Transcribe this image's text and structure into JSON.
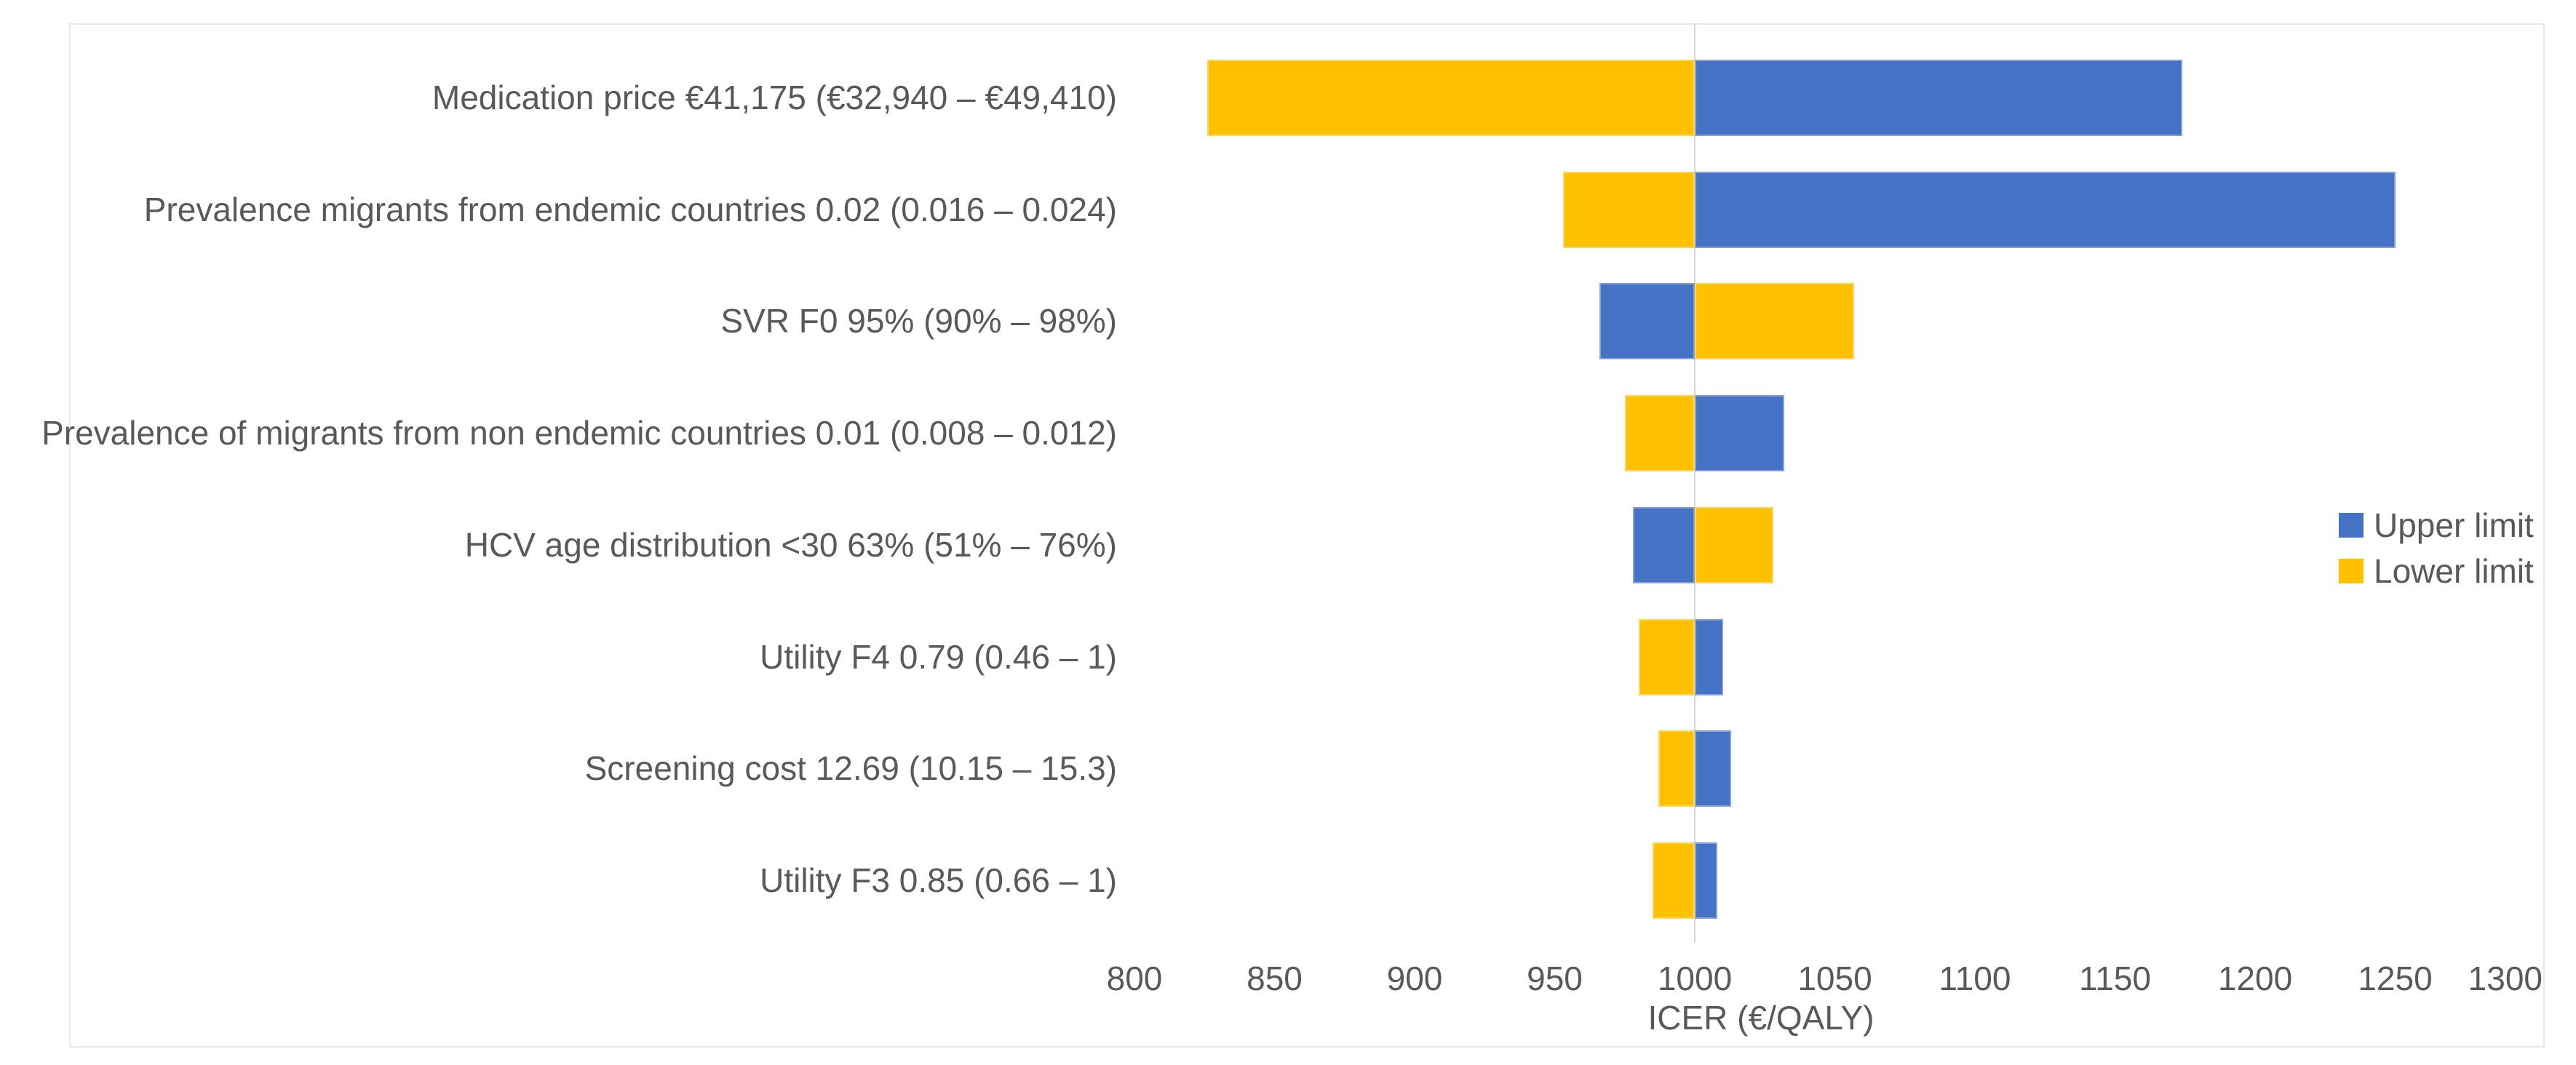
{
  "chart_data": {
    "type": "bar",
    "variant": "tornado",
    "title": "",
    "xlabel": "ICER (€/QALY)",
    "axis": {
      "min": 800,
      "max": 1300,
      "step": 50
    },
    "ticks": [
      800,
      850,
      900,
      950,
      1000,
      1050,
      1100,
      1150,
      1200,
      1250,
      1300
    ],
    "base_icer": 1000,
    "grid": "single-line-at-base",
    "legend_position": "right-middle",
    "legend": [
      {
        "label": "Upper limit",
        "color": "#4472C4"
      },
      {
        "label": "Lower limit",
        "color": "#FFC000"
      }
    ],
    "rows": [
      {
        "label": "Medication price €41,175 (€32,940 – €49,410)",
        "lower_limit_icer": 826,
        "upper_limit_icer": 1174
      },
      {
        "label": "Prevalence migrants from endemic countries 0.02 (0.016 – 0.024)",
        "lower_limit_icer": 953,
        "upper_limit_icer": 1250
      },
      {
        "label": "SVR F0 95% (90% – 98%)",
        "lower_limit_icer": 1057,
        "upper_limit_icer": 966
      },
      {
        "label": "Prevalence of migrants from non endemic countries 0.01 (0.008 – 0.012)",
        "lower_limit_icer": 975,
        "upper_limit_icer": 1032
      },
      {
        "label": "HCV age distribution <30 63% (51% – 76%)",
        "lower_limit_icer": 1028,
        "upper_limit_icer": 978
      },
      {
        "label": "Utility F4 0.79 (0.46 – 1)",
        "lower_limit_icer": 980,
        "upper_limit_icer": 1010
      },
      {
        "label": "Screening cost 12.69 (10.15 – 15.3)",
        "lower_limit_icer": 987,
        "upper_limit_icer": 1013
      },
      {
        "label": "Utility F3 0.85 (0.66 – 1)",
        "lower_limit_icer": 985,
        "upper_limit_icer": 1008
      }
    ],
    "colors": {
      "upper": "#4472C4",
      "lower": "#FFC000",
      "gridline": "#D9D9D9",
      "chart_border": "#E7E7E7",
      "text": "#595959"
    }
  }
}
